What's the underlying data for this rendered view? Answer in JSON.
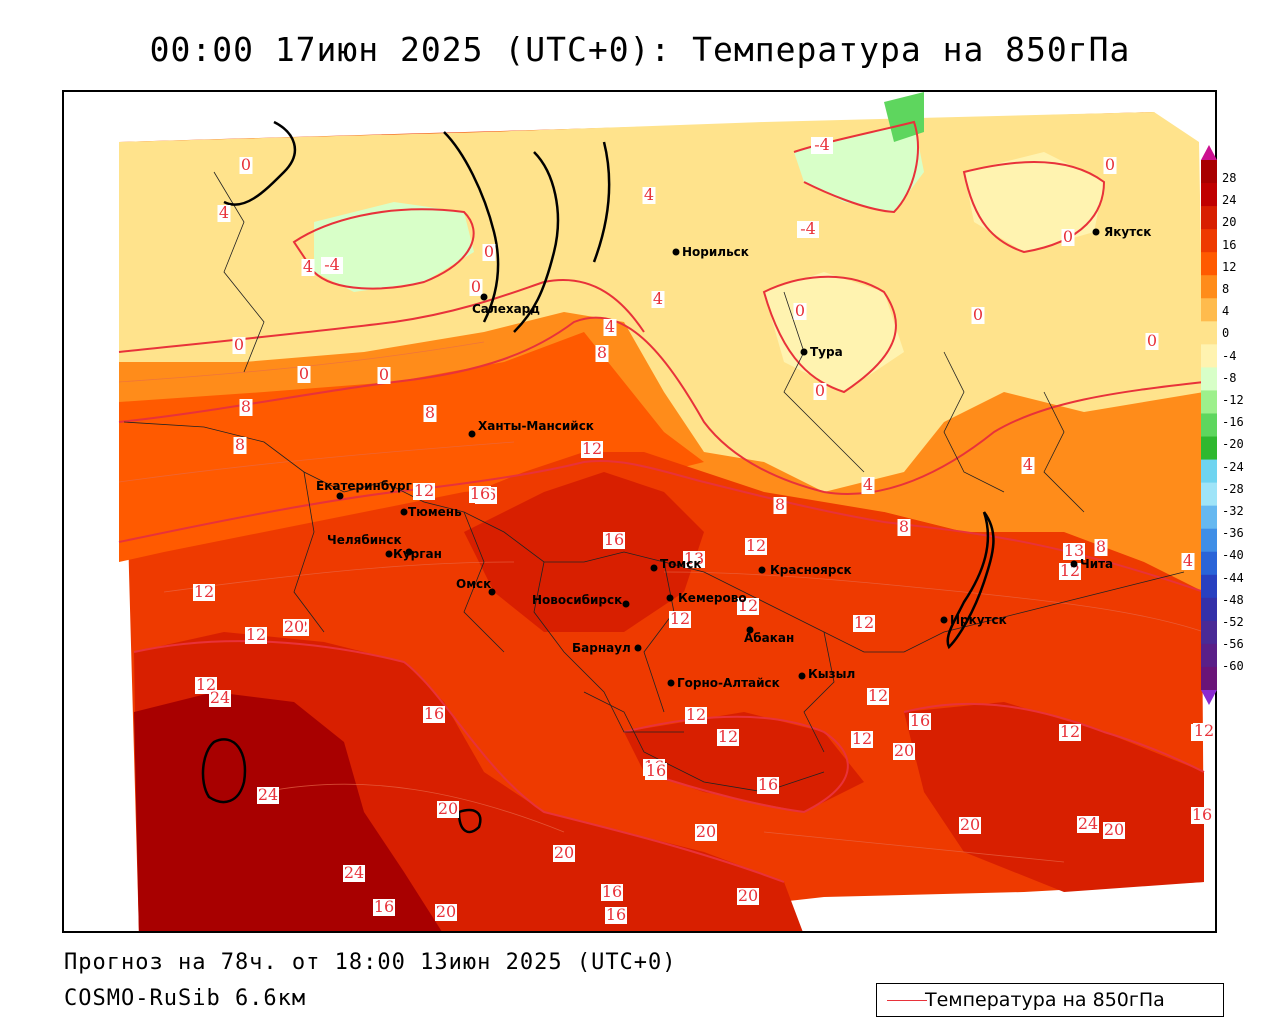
{
  "title": "00:00 17июн 2025 (UTC+0): Температура на 850гПа",
  "footer": {
    "forecast": "Прогноз на 78ч. от 18:00 13июн 2025 (UTC+0)",
    "model": "COSMO-RuSib 6.6км"
  },
  "legend": {
    "series_label": "Температура на 850гПа",
    "line_color": "#e8323a",
    "ticks": [
      "28",
      "24",
      "20",
      "16",
      "12",
      "8",
      "4",
      "0",
      "-4",
      "-8",
      "-12",
      "-16",
      "-20",
      "-24",
      "-28",
      "-32",
      "-36",
      "-40",
      "-44",
      "-48",
      "-52",
      "-56",
      "-60"
    ],
    "colors": [
      "#a80000",
      "#c00000",
      "#d81f00",
      "#ee3a00",
      "#ff5a00",
      "#ff8c1a",
      "#ffbb4d",
      "#ffe38c",
      "#fff3b0",
      "#d8ffc8",
      "#9df08c",
      "#5ed65e",
      "#2fb82f",
      "#6fd4f0",
      "#9fe4f8",
      "#66b8f0",
      "#3f8ee6",
      "#2a64d8",
      "#2840c0",
      "#3430a8",
      "#4a2a96",
      "#5a1f88",
      "#6a1478"
    ]
  },
  "cities": [
    {
      "name": "Норильск"
    },
    {
      "name": "Якутск"
    },
    {
      "name": "Салехард"
    },
    {
      "name": "Тура"
    },
    {
      "name": "Ханты-Мансийск"
    },
    {
      "name": "Екатеринбург"
    },
    {
      "name": "Тюмень"
    },
    {
      "name": "Челябинск"
    },
    {
      "name": "Курган"
    },
    {
      "name": "Омск"
    },
    {
      "name": "Новосибирск"
    },
    {
      "name": "Томск"
    },
    {
      "name": "Кемерово"
    },
    {
      "name": "Красноярск"
    },
    {
      "name": "Абакан"
    },
    {
      "name": "Барнаул"
    },
    {
      "name": "Горно-Алтайск"
    },
    {
      "name": "Кызыл"
    },
    {
      "name": "Иркутск"
    },
    {
      "name": "Чита"
    }
  ],
  "isotherm_labels": [
    "0",
    "-4",
    "0",
    "4",
    "0",
    "4",
    "4",
    "0",
    "0",
    "0",
    "-4",
    "-4",
    "0",
    "0",
    "4",
    "0",
    "4",
    "0",
    "0",
    "0",
    "8",
    "4",
    "8",
    "8",
    "8",
    "12",
    "16",
    "12",
    "16",
    "12",
    "12",
    "8",
    "4",
    "8",
    "12",
    "4",
    "8",
    "12",
    "12",
    "12",
    "13",
    "12",
    "16",
    "12",
    "12",
    "16",
    "12",
    "20",
    "13",
    "24",
    "24",
    "16",
    "16",
    "12",
    "12",
    "12",
    "16",
    "12",
    "16",
    "16",
    "20",
    "16",
    "20",
    "24",
    "20",
    "20",
    "16",
    "20",
    "16",
    "20",
    "20",
    "24",
    "20",
    "16",
    "12"
  ]
}
